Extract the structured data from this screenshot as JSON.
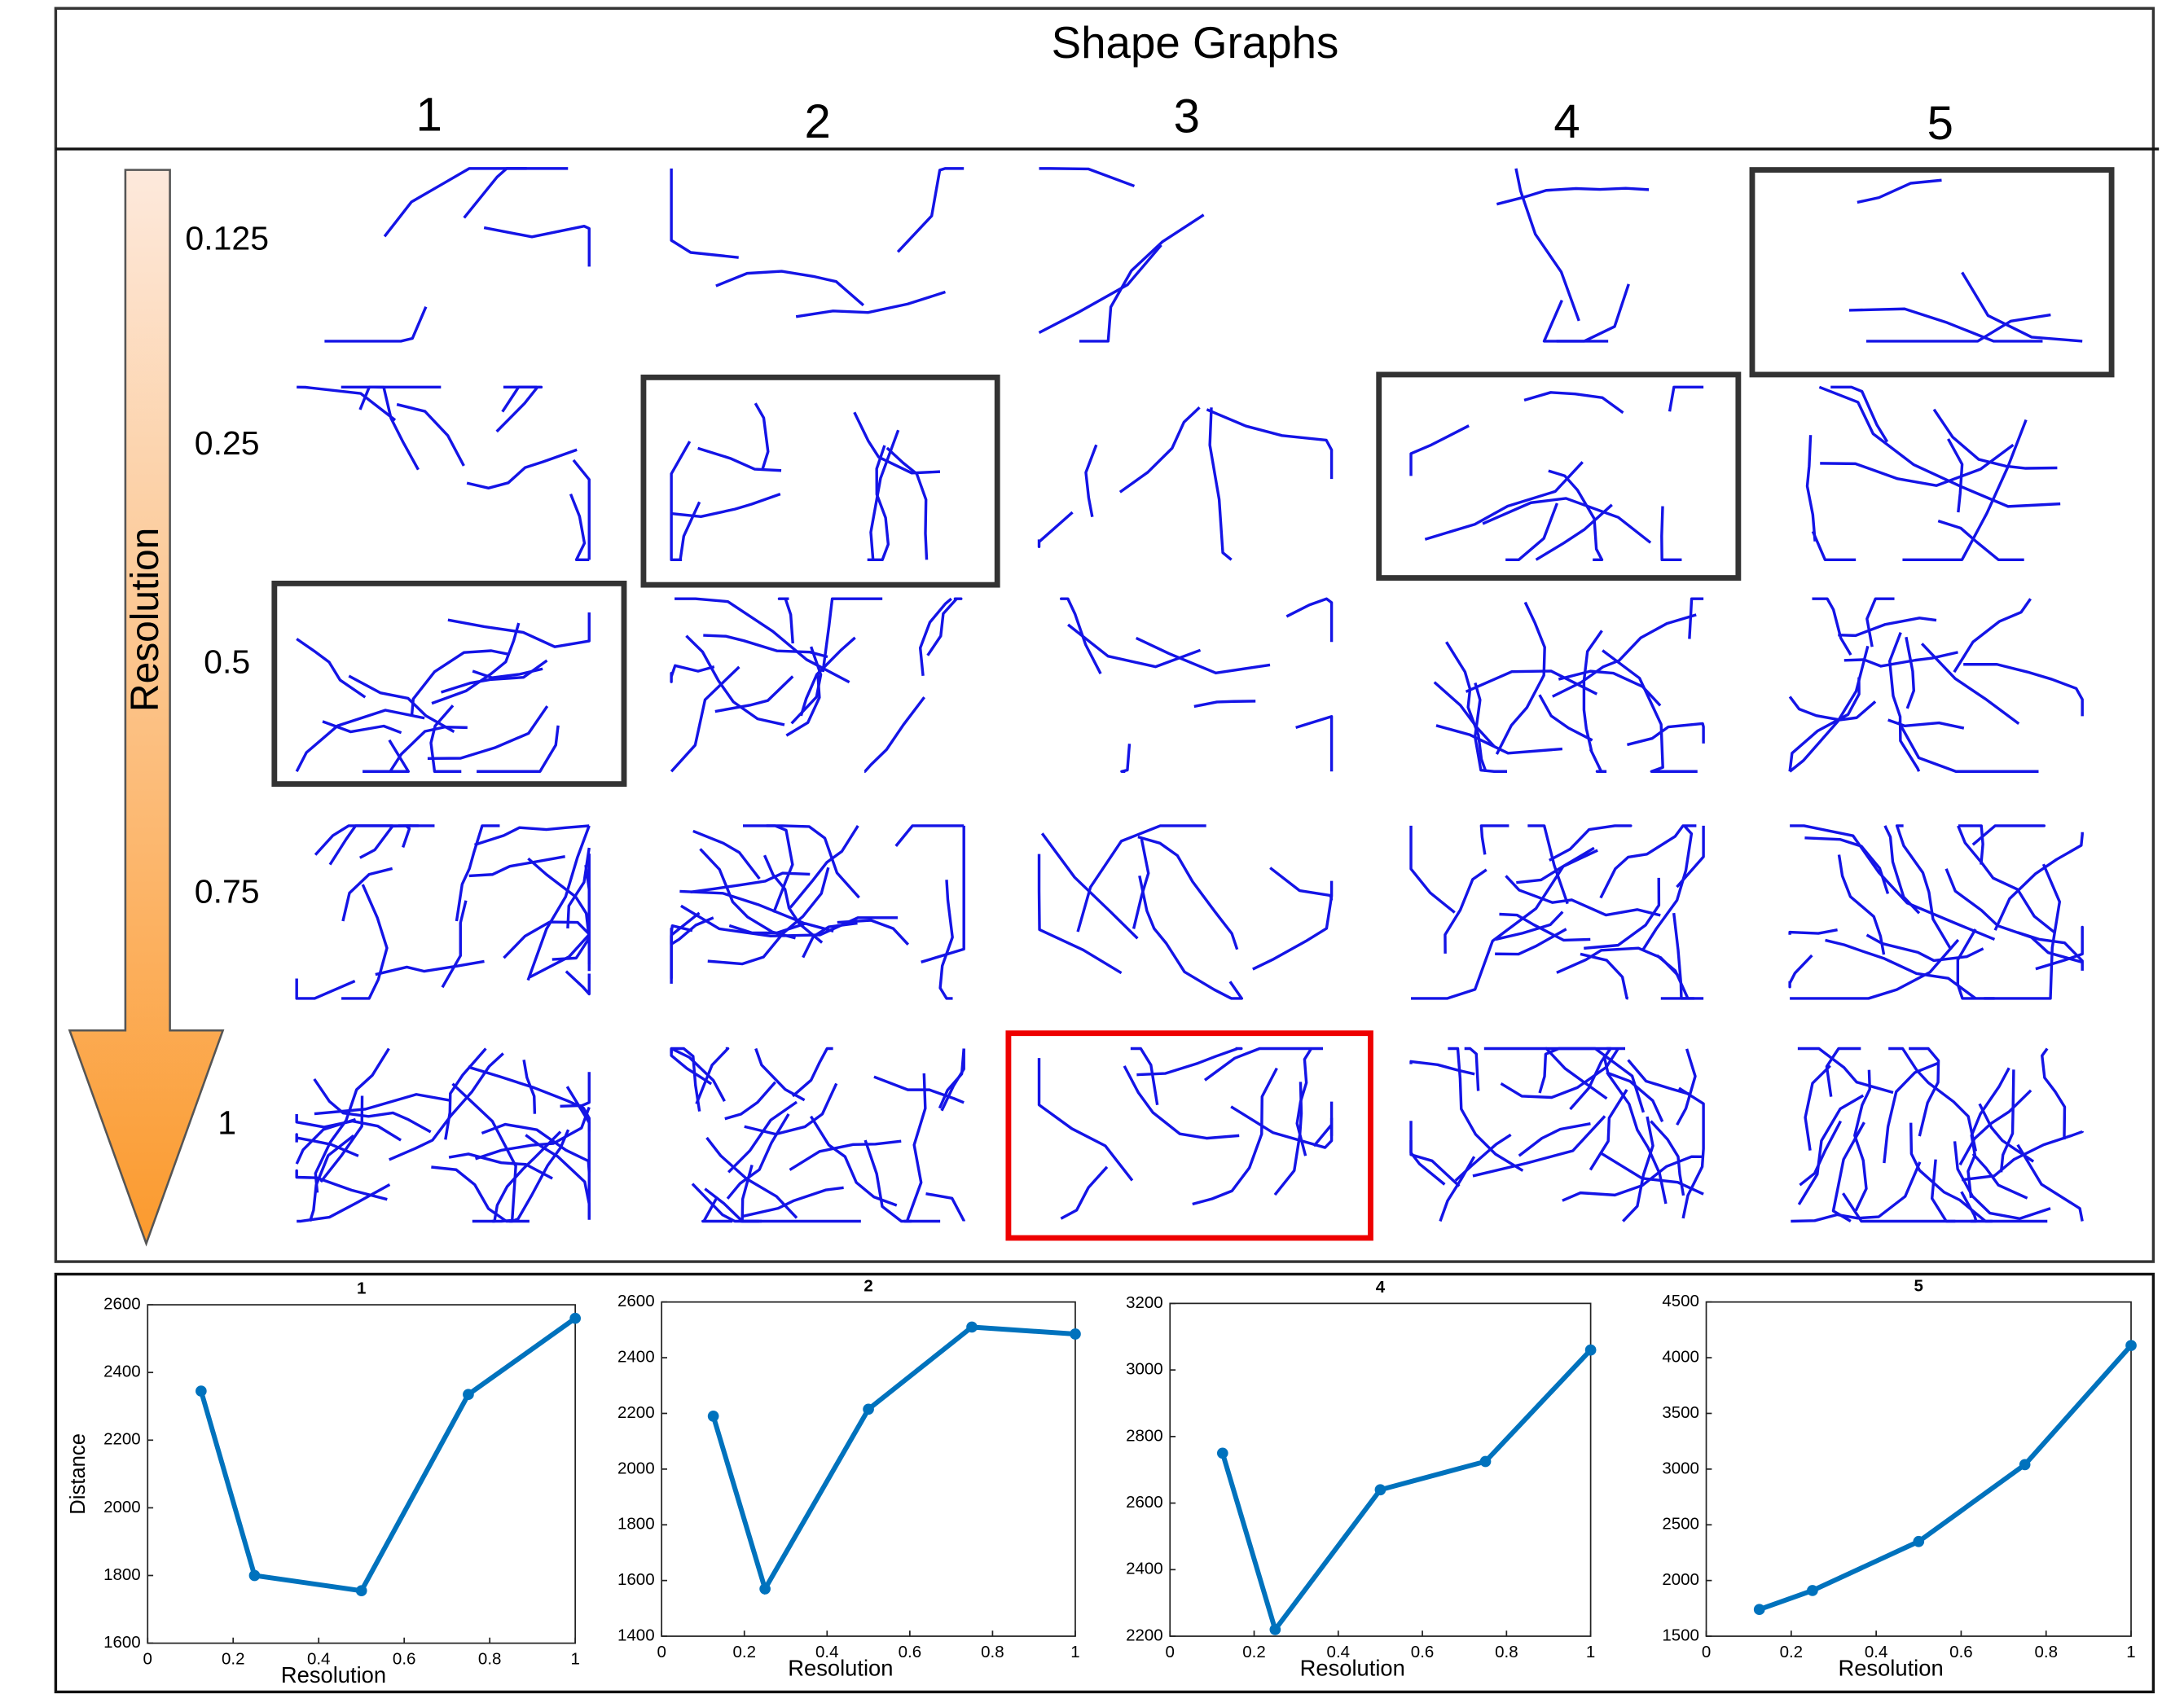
{
  "figure": {
    "title": "Shape Graphs",
    "columns": [
      "1",
      "2",
      "3",
      "4",
      "5"
    ],
    "rows": [
      "0.125",
      "0.25",
      "0.5",
      "0.75",
      "1"
    ],
    "axis_label": "Resolution"
  },
  "chart_data": [
    {
      "type": "line",
      "title": "1",
      "x_label": "Resolution",
      "y_label": "Distance",
      "x": [
        0.125,
        0.25,
        0.5,
        0.75,
        1
      ],
      "series": [
        {
          "color": "#0072bd",
          "values": [
            2345,
            1800,
            1755,
            2335,
            2560
          ]
        }
      ],
      "xlim": [
        0,
        1
      ],
      "xticks": [
        0,
        0.2,
        0.4,
        0.6,
        0.8,
        1
      ],
      "ylim": [
        1600,
        2600
      ],
      "yticks": [
        1600,
        1800,
        2000,
        2200,
        2400,
        2600
      ]
    },
    {
      "type": "line",
      "title": "2",
      "x_label": "Resolution",
      "x": [
        0.125,
        0.25,
        0.5,
        0.75,
        1
      ],
      "series": [
        {
          "color": "#0072bd",
          "values": [
            2190,
            1570,
            2215,
            2510,
            2485
          ]
        }
      ],
      "xlim": [
        0,
        1
      ],
      "xticks": [
        0,
        0.2,
        0.4,
        0.6,
        0.8,
        1
      ],
      "ylim": [
        1400,
        2600
      ],
      "yticks": [
        1400,
        1600,
        1800,
        2000,
        2200,
        2400,
        2600
      ]
    },
    {
      "type": "line",
      "title": "4",
      "x_label": "Resolution",
      "x": [
        0.125,
        0.25,
        0.5,
        0.75,
        1
      ],
      "series": [
        {
          "color": "#0072bd",
          "values": [
            2750,
            2220,
            2640,
            2725,
            3060
          ]
        }
      ],
      "xlim": [
        0,
        1
      ],
      "xticks": [
        0,
        0.2,
        0.4,
        0.6,
        0.8,
        1
      ],
      "ylim": [
        2200,
        3200
      ],
      "yticks": [
        2200,
        2400,
        2600,
        2800,
        3000,
        3200
      ]
    },
    {
      "type": "line",
      "title": "5",
      "x_label": "Resolution",
      "x": [
        0.125,
        0.25,
        0.5,
        0.75,
        1
      ],
      "series": [
        {
          "color": "#0072bd",
          "values": [
            1740,
            1910,
            2350,
            3040,
            4110
          ]
        }
      ],
      "xlim": [
        0,
        1
      ],
      "xticks": [
        0,
        0.2,
        0.4,
        0.6,
        0.8,
        1
      ],
      "ylim": [
        1500,
        4500
      ],
      "yticks": [
        1500,
        2000,
        2500,
        3000,
        3500,
        4000,
        4500
      ]
    }
  ]
}
